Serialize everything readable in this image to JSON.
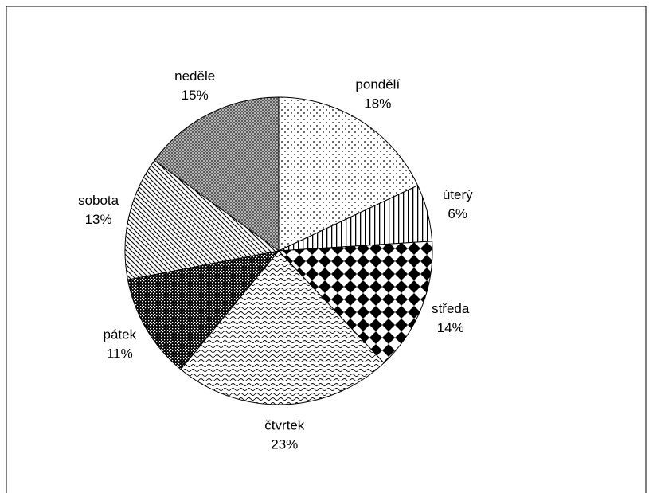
{
  "chart_data": {
    "type": "pie",
    "categories": [
      "pondělí",
      "úterý",
      "středa",
      "čtvrtek",
      "pátek",
      "sobota",
      "neděle"
    ],
    "values": [
      18,
      6,
      14,
      23,
      11,
      13,
      15
    ],
    "value_labels": [
      "18%",
      "6%",
      "14%",
      "23%",
      "11%",
      "13%",
      "15%"
    ]
  }
}
